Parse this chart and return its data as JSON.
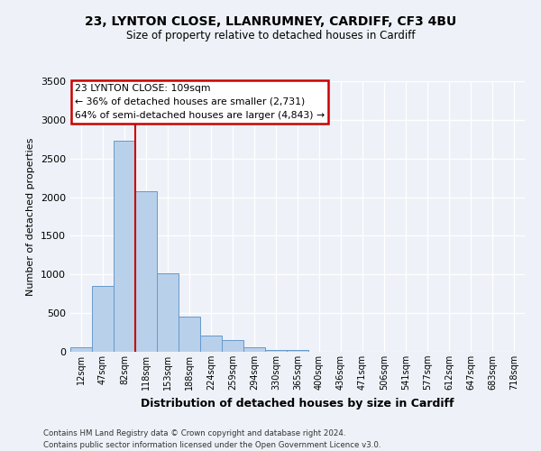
{
  "title_line1": "23, LYNTON CLOSE, LLANRUMNEY, CARDIFF, CF3 4BU",
  "title_line2": "Size of property relative to detached houses in Cardiff",
  "xlabel": "Distribution of detached houses by size in Cardiff",
  "ylabel": "Number of detached properties",
  "bin_labels": [
    "12sqm",
    "47sqm",
    "82sqm",
    "118sqm",
    "153sqm",
    "188sqm",
    "224sqm",
    "259sqm",
    "294sqm",
    "330sqm",
    "365sqm",
    "400sqm",
    "436sqm",
    "471sqm",
    "506sqm",
    "541sqm",
    "577sqm",
    "612sqm",
    "647sqm",
    "683sqm",
    "718sqm"
  ],
  "bar_heights": [
    55,
    850,
    2730,
    2080,
    1010,
    455,
    205,
    150,
    55,
    25,
    20,
    0,
    0,
    0,
    0,
    0,
    0,
    0,
    0,
    0,
    0
  ],
  "bar_color": "#b8d0ea",
  "bar_edge_color": "#6699cc",
  "annotation_line1": "23 LYNTON CLOSE: 109sqm",
  "annotation_line2": "← 36% of detached houses are smaller (2,731)",
  "annotation_line3": "64% of semi-detached houses are larger (4,843) →",
  "annotation_box_color": "#ffffff",
  "annotation_box_edge": "#cc0000",
  "vline_color": "#cc0000",
  "ylim": [
    0,
    3500
  ],
  "yticks": [
    0,
    500,
    1000,
    1500,
    2000,
    2500,
    3000,
    3500
  ],
  "footer_line1": "Contains HM Land Registry data © Crown copyright and database right 2024.",
  "footer_line2": "Contains public sector information licensed under the Open Government Licence v3.0.",
  "bg_color": "#eef2f8"
}
